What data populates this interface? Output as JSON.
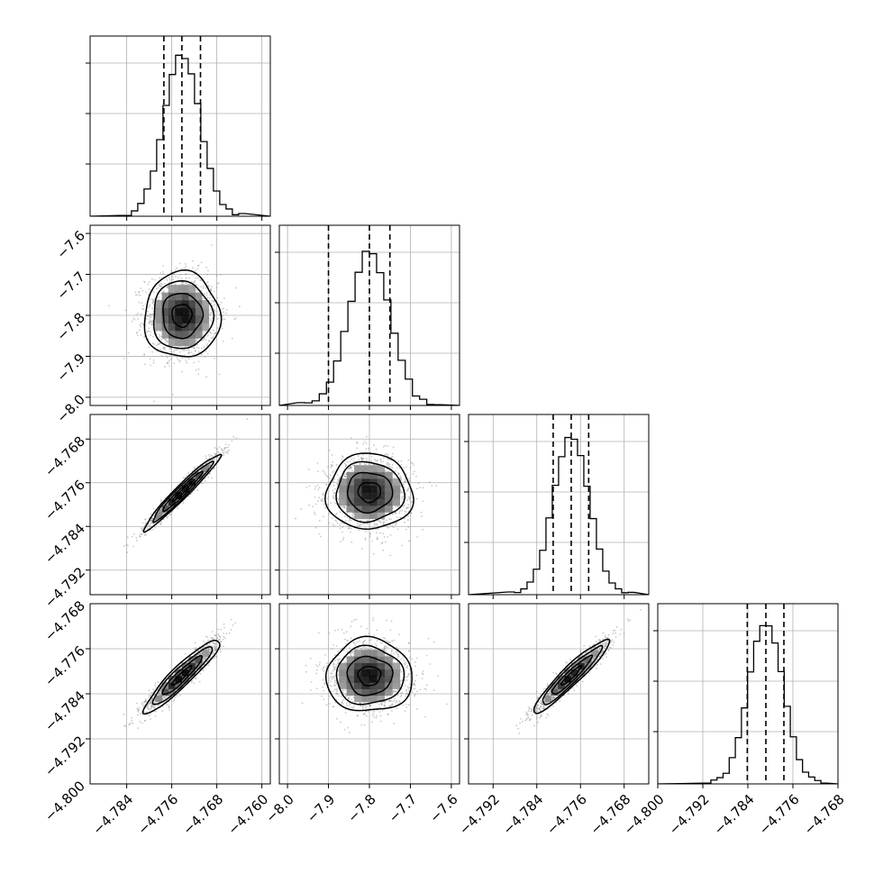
{
  "chart_data": {
    "type": "corner",
    "layout": "4x4 lower-triangular corner plot: 1D histograms on the diagonal, 2D density (scatter points, shaded bins, contours) below",
    "grid": true,
    "quantile_lines": "dashed vertical lines at three quantiles on each histogram",
    "colors": {
      "line": "#000000",
      "points": "#8a8a8a",
      "grid": "#b0b0b0"
    },
    "parameters": [
      {
        "index": 0,
        "range": [
          -4.7905,
          -4.7585
        ],
        "ticks": [
          -4.784,
          -4.776,
          -4.768,
          -4.76
        ],
        "tick_labels": [
          "−4.784",
          "−4.776",
          "−4.768",
          "−4.760"
        ],
        "center": -4.7742,
        "sigma": 0.0032,
        "quantiles": [
          -4.7774,
          -4.7742,
          -4.7709
        ],
        "hist_peak": 0.9
      },
      {
        "index": 1,
        "range": [
          -8.02,
          -7.58
        ],
        "ticks": [
          -8.0,
          -7.9,
          -7.8,
          -7.7,
          -7.6
        ],
        "tick_labels": [
          "−8.0",
          "−7.9",
          "−7.8",
          "−7.7",
          "−7.6"
        ],
        "center": -7.8,
        "sigma": 0.05,
        "quantiles": [
          -7.9,
          -7.8,
          -7.75
        ],
        "hist_peak": 0.86
      },
      {
        "index": 2,
        "range": [
          -4.7965,
          -4.7635
        ],
        "ticks": [
          -4.792,
          -4.784,
          -4.776,
          -4.768
        ],
        "tick_labels": [
          "−4.792",
          "−4.784",
          "−4.776",
          "−4.768"
        ],
        "center": -4.7777,
        "sigma": 0.0033,
        "quantiles": [
          -4.781,
          -4.7777,
          -4.7745
        ],
        "hist_peak": 0.88
      },
      {
        "index": 3,
        "range": [
          -4.8,
          -4.768
        ],
        "ticks": [
          -4.8,
          -4.792,
          -4.784,
          -4.776,
          -4.768
        ],
        "tick_labels": [
          "−4.800",
          "−4.792",
          "−4.784",
          "−4.776",
          "−4.768"
        ],
        "center": -4.7808,
        "sigma": 0.0031,
        "quantiles": [
          -4.7841,
          -4.7808,
          -4.7776
        ],
        "hist_peak": 0.9
      }
    ],
    "pairs": [
      {
        "x": 0,
        "y": 1,
        "correlation": 0.0,
        "contour_levels_sigma": [
          0.55,
          1.1,
          1.65,
          2.1
        ]
      },
      {
        "x": 0,
        "y": 2,
        "correlation": 0.97,
        "contour_levels_sigma": [
          0.55,
          1.1,
          1.65,
          2.1
        ]
      },
      {
        "x": 1,
        "y": 2,
        "correlation": 0.0,
        "contour_levels_sigma": [
          0.55,
          1.1,
          1.65,
          2.1
        ]
      },
      {
        "x": 0,
        "y": 3,
        "correlation": 0.93,
        "contour_levels_sigma": [
          0.55,
          1.1,
          1.65,
          2.1
        ]
      },
      {
        "x": 1,
        "y": 3,
        "correlation": 0.0,
        "contour_levels_sigma": [
          0.55,
          1.1,
          1.65,
          2.1
        ]
      },
      {
        "x": 2,
        "y": 3,
        "correlation": 0.94,
        "contour_levels_sigma": [
          0.55,
          1.1,
          1.65,
          2.1
        ]
      }
    ],
    "y_tick_panels": "left column only (rows 2–4)",
    "x_tick_panels": "bottom row only"
  }
}
